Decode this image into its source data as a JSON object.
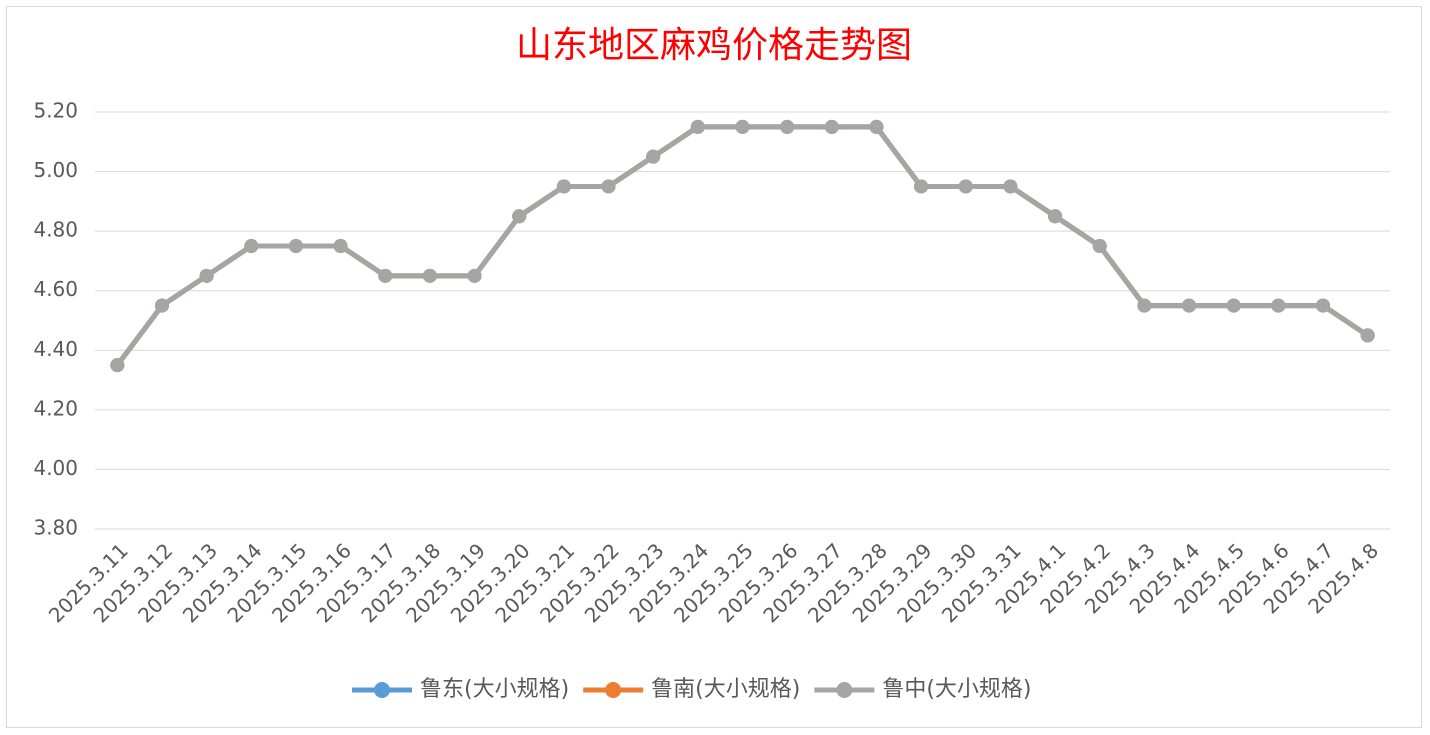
{
  "chart_data": {
    "type": "line",
    "title": "山东地区麻鸡价格走势图",
    "categories": [
      "2025.3.11",
      "2025.3.12",
      "2025.3.13",
      "2025.3.14",
      "2025.3.15",
      "2025.3.16",
      "2025.3.17",
      "2025.3.18",
      "2025.3.19",
      "2025.3.20",
      "2025.3.21",
      "2025.3.22",
      "2025.3.23",
      "2025.3.24",
      "2025.3.25",
      "2025.3.26",
      "2025.3.27",
      "2025.3.28",
      "2025.3.29",
      "2025.3.30",
      "2025.3.31",
      "2025.4.1",
      "2025.4.2",
      "2025.4.3",
      "2025.4.4",
      "2025.4.5",
      "2025.4.6",
      "2025.4.7",
      "2025.4.8"
    ],
    "series": [
      {
        "name": "鲁东(大小规格)",
        "color": "#5b9bd5",
        "values": [
          4.35,
          4.55,
          4.65,
          4.75,
          4.75,
          4.75,
          4.65,
          4.65,
          4.65,
          4.85,
          4.95,
          4.95,
          5.05,
          5.15,
          5.15,
          5.15,
          5.15,
          5.15,
          4.95,
          4.95,
          4.95,
          4.85,
          4.75,
          4.55,
          4.55,
          4.55,
          4.55,
          4.55,
          4.45
        ]
      },
      {
        "name": "鲁南(大小规格)",
        "color": "#ed7d31",
        "values": [
          4.35,
          4.55,
          4.65,
          4.75,
          4.75,
          4.75,
          4.65,
          4.65,
          4.65,
          4.85,
          4.95,
          4.95,
          5.05,
          5.15,
          5.15,
          5.15,
          5.15,
          5.15,
          4.95,
          4.95,
          4.95,
          4.85,
          4.75,
          4.55,
          4.55,
          4.55,
          4.55,
          4.55,
          4.45
        ]
      },
      {
        "name": "鲁中(大小规格)",
        "color": "#a5a5a5",
        "values": [
          4.35,
          4.55,
          4.65,
          4.75,
          4.75,
          4.75,
          4.65,
          4.65,
          4.65,
          4.85,
          4.95,
          4.95,
          5.05,
          5.15,
          5.15,
          5.15,
          5.15,
          5.15,
          4.95,
          4.95,
          4.95,
          4.85,
          4.75,
          4.55,
          4.55,
          4.55,
          4.55,
          4.55,
          4.45
        ]
      }
    ],
    "ylim": [
      3.8,
      5.2
    ],
    "yticks": [
      {
        "value": 3.8,
        "label": "3.80"
      },
      {
        "value": 4,
        "label": "4.00"
      },
      {
        "value": 4.2,
        "label": "4.20"
      },
      {
        "value": 4.4,
        "label": "4.40"
      },
      {
        "value": 4.6,
        "label": "4.60"
      },
      {
        "value": 4.8,
        "label": "4.80"
      },
      {
        "value": 5,
        "label": "5.00"
      },
      {
        "value": 5.2,
        "label": "5.20"
      }
    ],
    "grid": true,
    "legend": "bottom"
  }
}
